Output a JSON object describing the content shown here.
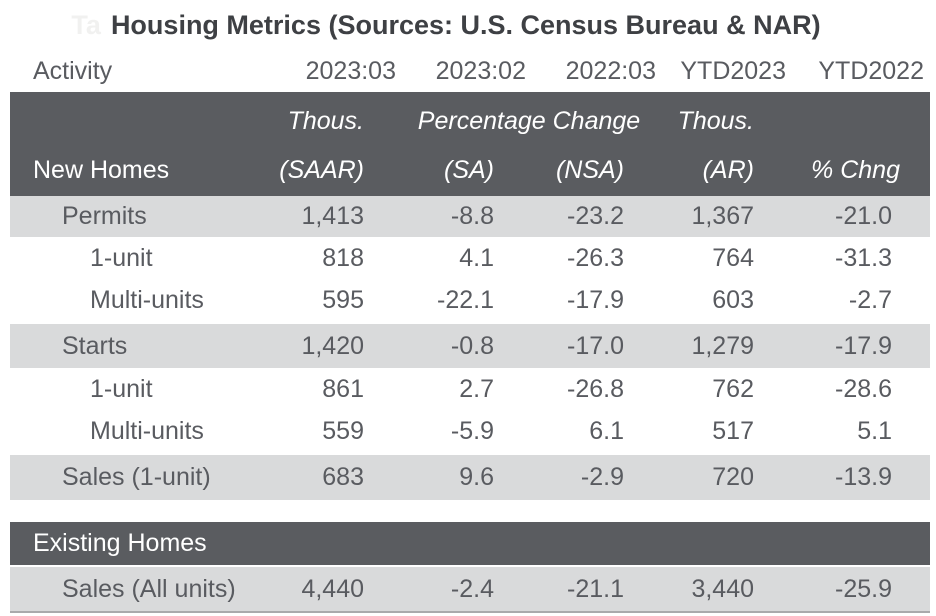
{
  "title": {
    "faint_prefix": "Ta",
    "text": "Housing Metrics (Sources: U.S. Census Bureau & NAR)"
  },
  "header": {
    "activity_label": "Activity",
    "periods": [
      "2023:03",
      "2023:02",
      "2022:03",
      "YTD2023",
      "YTD2022"
    ]
  },
  "new_homes": {
    "section_label": "New Homes",
    "units": {
      "col1": "Thous.",
      "col2_3": "Percentage Change",
      "col4": "Thous."
    },
    "sub_headers": [
      "(SAAR)",
      "(SA)",
      "(NSA)",
      "(AR)",
      "% Chng"
    ]
  },
  "rows": [
    {
      "label": "Permits",
      "values": [
        "1,413",
        "-8.8",
        "-23.2",
        "1,367",
        "-21.0"
      ]
    },
    {
      "label": "1-unit",
      "values": [
        "818",
        "4.1",
        "-26.3",
        "764",
        "-31.3"
      ]
    },
    {
      "label": "Multi-units",
      "values": [
        "595",
        "-22.1",
        "-17.9",
        "603",
        "-2.7"
      ]
    },
    {
      "label": "Starts",
      "values": [
        "1,420",
        "-0.8",
        "-17.0",
        "1,279",
        "-17.9"
      ]
    },
    {
      "label": "1-unit",
      "values": [
        "861",
        "2.7",
        "-26.8",
        "762",
        "-28.6"
      ]
    },
    {
      "label": "Multi-units",
      "values": [
        "559",
        "-5.9",
        "6.1",
        "517",
        "5.1"
      ]
    },
    {
      "label": "Sales (1-unit)",
      "values": [
        "683",
        "9.6",
        "-2.9",
        "720",
        "-13.9"
      ]
    }
  ],
  "existing_homes": {
    "section_label": "Existing Homes",
    "row": {
      "label": "Sales (All units)",
      "values": [
        "4,440",
        "-2.4",
        "-21.1",
        "3,440",
        "-25.9"
      ]
    }
  },
  "colors": {
    "dark_band": "#5a5c60",
    "shaded_row": "#d9dadb",
    "body_text": "#595b60",
    "title_text": "#3e4044",
    "band_text": "#ffffff",
    "bottom_rule": "#a9aaac"
  },
  "chart_data": {
    "type": "table",
    "title": "Housing Metrics (Sources: U.S. Census Bureau & NAR)",
    "columns": [
      "Activity",
      "2023:03",
      "2023:02",
      "2022:03",
      "YTD2023",
      "YTD2022"
    ],
    "column_units": [
      "",
      "Thous. (SAAR)",
      "Percentage Change (SA)",
      "Percentage Change (NSA)",
      "Thous. (AR)",
      "% Chng"
    ],
    "sections": [
      {
        "name": "New Homes",
        "rows": [
          {
            "activity": "Permits",
            "v2023_03": 1413,
            "v2023_02": -8.8,
            "v2022_03": -23.2,
            "ytd2023": 1367,
            "ytd2022": -21.0
          },
          {
            "activity": "1-unit",
            "v2023_03": 818,
            "v2023_02": 4.1,
            "v2022_03": -26.3,
            "ytd2023": 764,
            "ytd2022": -31.3
          },
          {
            "activity": "Multi-units",
            "v2023_03": 595,
            "v2023_02": -22.1,
            "v2022_03": -17.9,
            "ytd2023": 603,
            "ytd2022": -2.7
          },
          {
            "activity": "Starts",
            "v2023_03": 1420,
            "v2023_02": -0.8,
            "v2022_03": -17.0,
            "ytd2023": 1279,
            "ytd2022": -17.9
          },
          {
            "activity": "1-unit",
            "v2023_03": 861,
            "v2023_02": 2.7,
            "v2022_03": -26.8,
            "ytd2023": 762,
            "ytd2022": -28.6
          },
          {
            "activity": "Multi-units",
            "v2023_03": 559,
            "v2023_02": -5.9,
            "v2022_03": 6.1,
            "ytd2023": 517,
            "ytd2022": 5.1
          },
          {
            "activity": "Sales (1-unit)",
            "v2023_03": 683,
            "v2023_02": 9.6,
            "v2022_03": -2.9,
            "ytd2023": 720,
            "ytd2022": -13.9
          }
        ]
      },
      {
        "name": "Existing Homes",
        "rows": [
          {
            "activity": "Sales (All units)",
            "v2023_03": 4440,
            "v2023_02": -2.4,
            "v2022_03": -21.1,
            "ytd2023": 3440,
            "ytd2022": -25.9
          }
        ]
      }
    ]
  }
}
